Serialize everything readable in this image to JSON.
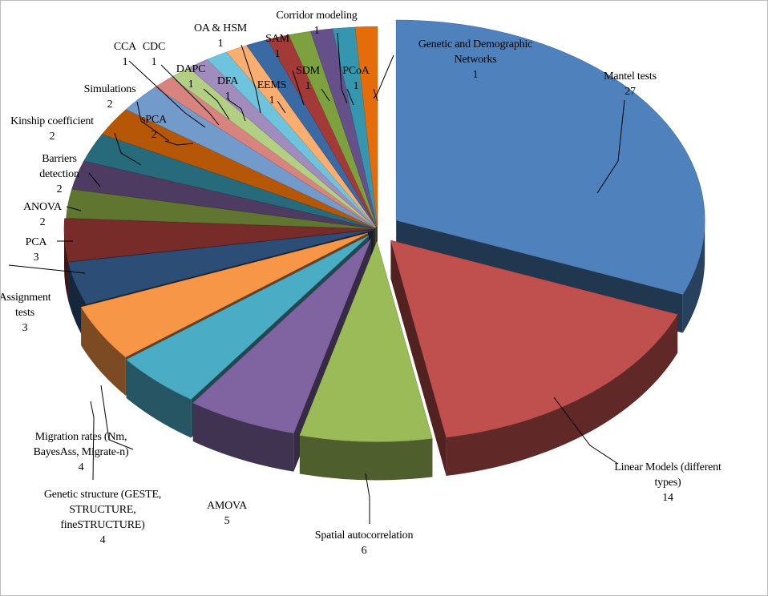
{
  "chart_data": {
    "type": "pie",
    "style": "3d-exploded",
    "legend": "none",
    "slices": [
      {
        "label": "Mantel tests",
        "value": 27,
        "color": "#4f81bd"
      },
      {
        "label": "Linear Models (different types)",
        "value": 14,
        "color": "#c0504d"
      },
      {
        "label": "Spatial autocorrelation",
        "value": 6,
        "color": "#9bbb59"
      },
      {
        "label": "AMOVA",
        "value": 5,
        "color": "#8064a2"
      },
      {
        "label": "Genetic structure (GESTE, STRUCTURE, fineSTRUCTURE)",
        "value": 4,
        "color": "#4bacc6"
      },
      {
        "label": "Migration rates (Nm, BayesAss, Migrate-n)",
        "value": 4,
        "color": "#f79646"
      },
      {
        "label": "Assignment tests",
        "value": 3,
        "color": "#2c4d75"
      },
      {
        "label": "PCA",
        "value": 3,
        "color": "#772c2a"
      },
      {
        "label": "ANOVA",
        "value": 2,
        "color": "#5f7530"
      },
      {
        "label": "Barriers detection",
        "value": 2,
        "color": "#4d3b62"
      },
      {
        "label": "Kinship coefficient",
        "value": 2,
        "color": "#276a7c"
      },
      {
        "label": "Simulations",
        "value": 2,
        "color": "#b65708"
      },
      {
        "label": "sPCA",
        "value": 2,
        "color": "#729aca"
      },
      {
        "label": "CCA",
        "value": 1,
        "color": "#d9837f"
      },
      {
        "label": "CDC",
        "value": 1,
        "color": "#b3cf83"
      },
      {
        "label": "DAPC",
        "value": 1,
        "color": "#a08dbd"
      },
      {
        "label": "DFA",
        "value": 1,
        "color": "#6fc4dd"
      },
      {
        "label": "OA & HSM",
        "value": 1,
        "color": "#f9ae70"
      },
      {
        "label": "EEMS",
        "value": 1,
        "color": "#3a6aa3"
      },
      {
        "label": "SAM",
        "value": 1,
        "color": "#a33a37"
      },
      {
        "label": "SDM",
        "value": 1,
        "color": "#7ea13f"
      },
      {
        "label": "Corridor modeling",
        "value": 1,
        "color": "#66508a"
      },
      {
        "label": "PCoA",
        "value": 1,
        "color": "#3596b0"
      },
      {
        "label": "Genetic and Demographic Networks",
        "value": 1,
        "color": "#e46c0a"
      }
    ]
  },
  "labels": [
    {
      "lines": [
        "Mantel tests"
      ],
      "value": "27"
    },
    {
      "lines": [
        "Linear Models (different",
        "types)"
      ],
      "value": "14"
    },
    {
      "lines": [
        "Spatial autocorrelation"
      ],
      "value": "6"
    },
    {
      "lines": [
        "AMOVA"
      ],
      "value": "5"
    },
    {
      "lines": [
        "Genetic structure (GESTE,",
        "STRUCTURE,",
        "fineSTRUCTURE)"
      ],
      "value": "4"
    },
    {
      "lines": [
        "Migration rates (Nm,",
        "BayesAss, Migrate-n)"
      ],
      "value": "4"
    },
    {
      "lines": [
        "Assignment",
        "tests"
      ],
      "value": "3"
    },
    {
      "lines": [
        "PCA"
      ],
      "value": "3"
    },
    {
      "lines": [
        "ANOVA"
      ],
      "value": "2"
    },
    {
      "lines": [
        "Barriers",
        "detection"
      ],
      "value": "2"
    },
    {
      "lines": [
        "Kinship coefficient"
      ],
      "value": "2"
    },
    {
      "lines": [
        "Simulations"
      ],
      "value": "2"
    },
    {
      "lines": [
        "sPCA"
      ],
      "value": "2"
    },
    {
      "lines": [
        "CCA"
      ],
      "value": "1"
    },
    {
      "lines": [
        "CDC"
      ],
      "value": "1"
    },
    {
      "lines": [
        "DAPC"
      ],
      "value": "1"
    },
    {
      "lines": [
        "DFA"
      ],
      "value": "1"
    },
    {
      "lines": [
        "OA & HSM"
      ],
      "value": "1"
    },
    {
      "lines": [
        "EEMS"
      ],
      "value": "1"
    },
    {
      "lines": [
        "SAM"
      ],
      "value": "1"
    },
    {
      "lines": [
        "SDM"
      ],
      "value": "1"
    },
    {
      "lines": [
        "Corridor modeling"
      ],
      "value": "1"
    },
    {
      "lines": [
        "PCoA"
      ],
      "value": "1"
    },
    {
      "lines": [
        "Genetic and Demographic",
        "Networks"
      ],
      "value": "1"
    }
  ]
}
